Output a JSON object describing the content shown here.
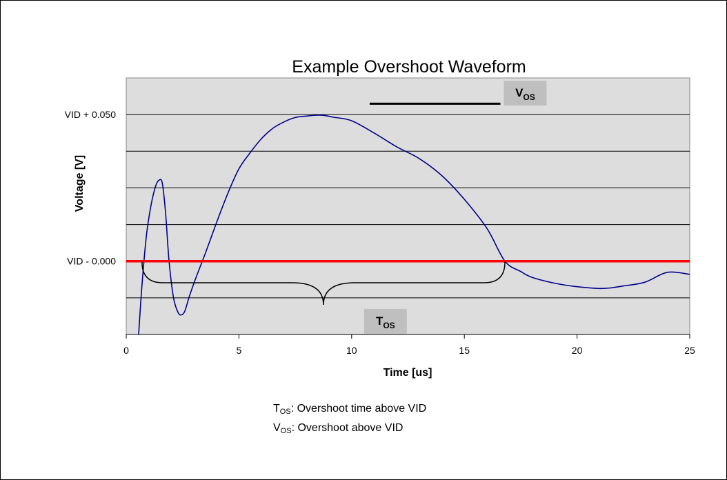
{
  "chart_data": {
    "type": "line",
    "title": "Example Overshoot Waveform",
    "xlabel": "Time [us]",
    "ylabel": "Voltage [V]",
    "xlim": [
      0,
      25
    ],
    "x_ticks": [
      "0",
      "5",
      "10",
      "15",
      "20",
      "25"
    ],
    "ylim": [
      -0.025,
      0.0625
    ],
    "y_tick_labels": [
      {
        "value": 0.05,
        "label": "VID + 0.050"
      },
      {
        "value": 0.0,
        "label": "VID - 0.000"
      }
    ],
    "grid": true,
    "plot_background": "#dddddd",
    "series": [
      {
        "color": "#00008b",
        "x": [
          0.55,
          0.7,
          0.9,
          1.1,
          1.3,
          1.45,
          1.6,
          1.75,
          1.9,
          2.1,
          2.3,
          2.45,
          2.6,
          2.8,
          3.1,
          3.5,
          4.0,
          4.5,
          5.0,
          5.5,
          6.0,
          6.5,
          7.0,
          7.5,
          8.0,
          8.5,
          8.8,
          9.2,
          10.0,
          11.0,
          12.0,
          13.0,
          14.0,
          15.0,
          16.0,
          16.8,
          17.5,
          18.0,
          19.0,
          20.0,
          21.0,
          21.5,
          22.0,
          23.0,
          24.0,
          25.0
        ],
        "y": [
          -0.025,
          -0.008,
          0.009,
          0.019,
          0.0255,
          0.0276,
          0.0266,
          0.016,
          0.0,
          -0.0125,
          -0.0175,
          -0.0183,
          -0.017,
          -0.012,
          -0.0055,
          0.0025,
          0.013,
          0.023,
          0.0315,
          0.037,
          0.0418,
          0.0453,
          0.0475,
          0.049,
          0.0495,
          0.0498,
          0.0497,
          0.0491,
          0.0479,
          0.0437,
          0.039,
          0.035,
          0.0292,
          0.0211,
          0.0112,
          0.0,
          -0.0035,
          -0.0055,
          -0.0075,
          -0.0087,
          -0.0093,
          -0.0091,
          -0.0085,
          -0.0072,
          -0.0038,
          -0.0045
        ]
      },
      {
        "color": "#ff0000",
        "x": [
          0,
          25
        ],
        "y": [
          0.0,
          0.0
        ]
      }
    ],
    "annotations": {
      "vos": {
        "main": "V",
        "sub": "OS",
        "line_x": [
          10.8,
          16.6
        ],
        "line_y": 0.0537,
        "box_center_x": 17.7,
        "box_center_y": 0.0573
      },
      "tos": {
        "main": "T",
        "sub": "OS",
        "brace_x": [
          0.7,
          16.8
        ],
        "brace_center_x": 8.75,
        "box_center_x": 11.5,
        "box_center_y": -0.0205
      }
    }
  },
  "legend": {
    "tos": {
      "main": "T",
      "sub": "OS",
      "text": ": Overshoot time above VID"
    },
    "vos": {
      "main": "V",
      "sub": "OS",
      "text": ": Overshoot above VID"
    }
  }
}
